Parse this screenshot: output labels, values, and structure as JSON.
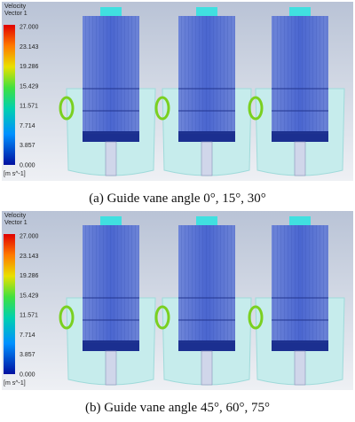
{
  "panels": [
    {
      "legend": {
        "title": "Velocity",
        "subtitle": "Vector 1",
        "ticks": [
          "27.000",
          "23.143",
          "19.286",
          "15.429",
          "11.571",
          "7.714",
          "3.857",
          "0.000"
        ],
        "unit": "[m s^-1]"
      },
      "caption": "(a)  Guide  vane  angle  0°,  15°,  30°"
    },
    {
      "legend": {
        "title": "Velocity",
        "subtitle": "Vector 1",
        "ticks": [
          "27.000",
          "23.143",
          "19.286",
          "15.429",
          "11.571",
          "7.714",
          "3.857",
          "0.000"
        ],
        "unit": "[m s^-1]"
      },
      "caption": "(b)  Guide  vane  angle  45°,  60°,  75°"
    }
  ]
}
